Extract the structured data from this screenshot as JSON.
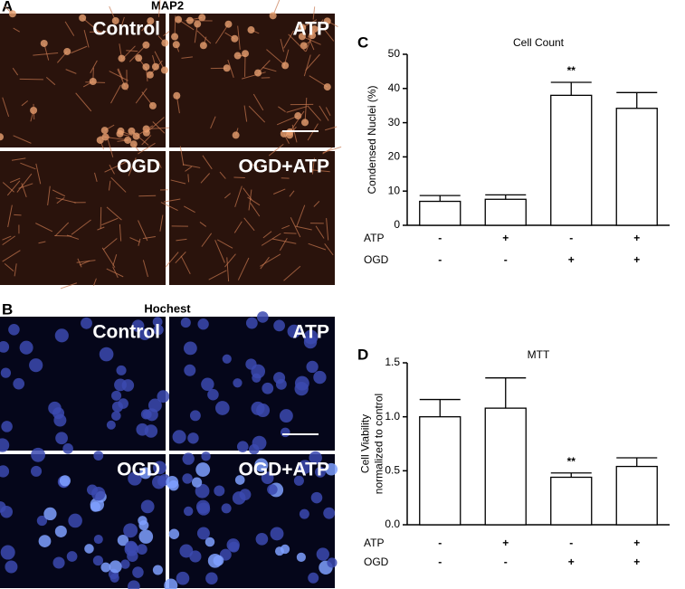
{
  "figure": {
    "panel_a": {
      "letter": "A",
      "title": "MAP2",
      "images": [
        "Control",
        "ATP",
        "OGD",
        "OGD+ATP"
      ]
    },
    "panel_b": {
      "letter": "B",
      "title": "Hochest",
      "images": [
        "Control",
        "ATP",
        "OGD",
        "OGD+ATP"
      ]
    }
  },
  "chart_data": [
    {
      "type": "bar",
      "letter": "C",
      "title": "Cell Count",
      "ylabel": [
        "Condensed Nuclei (%)"
      ],
      "values": [
        7,
        7.6,
        38,
        34.2
      ],
      "errors": [
        1.7,
        1.3,
        3.8,
        4.6
      ],
      "significance": [
        null,
        null,
        "**",
        null
      ],
      "conditions": [
        {
          "name": "ATP",
          "labels": [
            "-",
            "+",
            "-",
            "+"
          ]
        },
        {
          "name": "OGD",
          "labels": [
            "-",
            "-",
            "+",
            "+"
          ]
        }
      ],
      "color": "#ffffff",
      "ylim": [
        0,
        50
      ],
      "yticks": [
        0,
        10,
        20,
        30,
        40,
        50
      ]
    },
    {
      "type": "bar",
      "letter": "D",
      "title": "MTT",
      "ylabel": [
        "Cell Viability",
        "normalized to control"
      ],
      "values": [
        1.0,
        1.08,
        0.44,
        0.54
      ],
      "errors": [
        0.16,
        0.28,
        0.04,
        0.08
      ],
      "significance": [
        null,
        null,
        "**",
        null
      ],
      "conditions": [
        {
          "name": "ATP",
          "labels": [
            "-",
            "+",
            "-",
            "+"
          ]
        },
        {
          "name": "OGD",
          "labels": [
            "-",
            "-",
            "+",
            "+"
          ]
        }
      ],
      "color": "#ffffff",
      "ylim": [
        0,
        1.5
      ],
      "yticks": [
        {
          "value": 0,
          "label": "0.0"
        },
        0.5,
        {
          "value": 1,
          "label": "1.0"
        },
        1.5
      ]
    }
  ]
}
